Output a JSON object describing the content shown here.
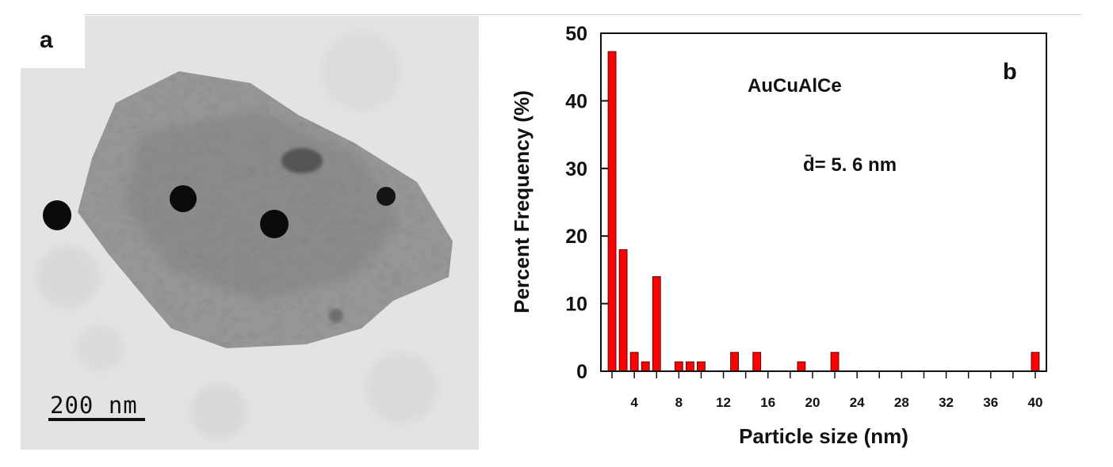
{
  "panel_a": {
    "letter": "a",
    "scale_label": "200  nm"
  },
  "panel_b": {
    "letter": "b",
    "sample_label": "AuCuAlCe",
    "mean_label": "d̄= 5. 6 nm"
  },
  "chart_data": {
    "type": "bar",
    "xlabel": "Particle size (nm)",
    "ylabel": "Percent Frequency (%)",
    "xlim": [
      1,
      41
    ],
    "ylim": [
      0,
      50
    ],
    "xticks": [
      4,
      8,
      12,
      16,
      20,
      24,
      28,
      32,
      36,
      40
    ],
    "yticks": [
      0,
      10,
      20,
      30,
      40,
      50
    ],
    "bar_color": "#ff0000",
    "x": [
      2,
      3,
      4,
      5,
      6,
      8,
      9,
      10,
      13,
      15,
      19,
      22,
      40
    ],
    "values": [
      47.3,
      18.0,
      2.8,
      1.4,
      14.0,
      1.4,
      1.4,
      1.4,
      2.8,
      2.8,
      1.4,
      2.8,
      2.8
    ]
  }
}
